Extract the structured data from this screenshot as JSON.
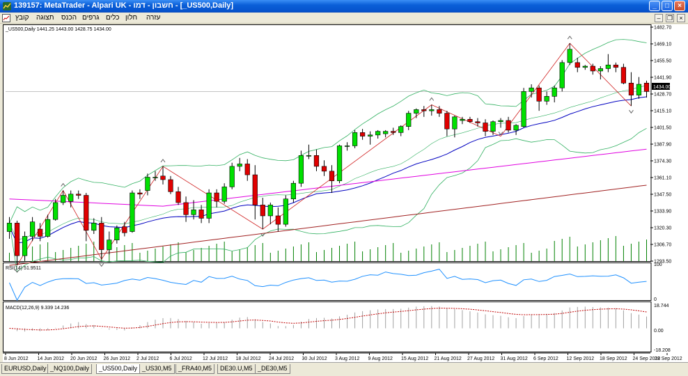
{
  "window": {
    "title": "139157: MetaTrader - Alpari UK - חשבון - דמו - [_US500,Daily]",
    "minimize": "_",
    "maximize": "□",
    "close": "×"
  },
  "menu": {
    "items": [
      "קובץ",
      "תצוגה",
      "הכנס",
      "גרפים",
      "כלים",
      "חלון",
      "עזרה"
    ]
  },
  "chart": {
    "header": "_US500,Daily  1441.25 1443.00 1428.75 1434.00",
    "current_price_label": "1434.00",
    "price_ticks": [
      "1482.70",
      "1469.10",
      "1455.50",
      "1441.90",
      "1428.70",
      "1415.10",
      "1401.50",
      "1387.90",
      "1374.30",
      "1361.10",
      "1347.50",
      "1333.90",
      "1320.30",
      "1306.70",
      "1293.50"
    ],
    "date_ticks": [
      "8 Jun 2012",
      "14 Jun 2012",
      "20 Jun 2012",
      "26 Jun 2012",
      "2 Jul 2012",
      "6 Jul 2012",
      "12 Jul 2012",
      "18 Jul 2012",
      "24 Jul 2012",
      "30 Jul 2012",
      "3 Aug 2012",
      "9 Aug 2012",
      "15 Aug 2012",
      "21 Aug 2012",
      "27 Aug 2012",
      "31 Aug 2012",
      "6 Sep 2012",
      "12 Sep 2012",
      "18 Sep 2012",
      "24 Sep 2012",
      "28 Sep 2012"
    ],
    "rsi_label": "RSI(14) 51.9511",
    "rsi_ticks": [
      "100",
      "0"
    ],
    "macd_label": "MACD(12,26,9) 9.339 14.236",
    "macd_ticks": [
      "18.744",
      "0.00",
      "-18.208"
    ],
    "colors": {
      "bull": "#00e000",
      "bear": "#e00000",
      "ma_blue": "#0000c0",
      "ma_magenta": "#e000e0",
      "ma_brown": "#a02020",
      "bands": "#30b060",
      "zigzag": "#d02020",
      "rsi": "#1e90ff",
      "macd_signal": "#c00000"
    }
  },
  "chart_data": {
    "type": "candlestick",
    "symbol": "_US500",
    "timeframe": "Daily",
    "ylim": [
      1293.5,
      1482.7
    ],
    "ohlc": [
      [
        1318,
        1330,
        1312,
        1325
      ],
      [
        1325,
        1327,
        1290,
        1298
      ],
      [
        1298,
        1318,
        1294,
        1314
      ],
      [
        1314,
        1330,
        1310,
        1326
      ],
      [
        1320,
        1325,
        1310,
        1314
      ],
      [
        1314,
        1332,
        1313,
        1328
      ],
      [
        1328,
        1345,
        1327,
        1342
      ],
      [
        1342,
        1352,
        1340,
        1348
      ],
      [
        1343,
        1352,
        1338,
        1349
      ],
      [
        1349,
        1352,
        1345,
        1348
      ],
      [
        1348,
        1350,
        1310,
        1319
      ],
      [
        1319,
        1329,
        1316,
        1325
      ],
      [
        1325,
        1330,
        1295,
        1303
      ],
      [
        1303,
        1318,
        1299,
        1311
      ],
      [
        1311,
        1323,
        1308,
        1321
      ],
      [
        1322,
        1326,
        1314,
        1317
      ],
      [
        1318,
        1352,
        1317,
        1350
      ],
      [
        1350,
        1353,
        1345,
        1349
      ],
      [
        1352,
        1366,
        1348,
        1363
      ],
      [
        1363,
        1368,
        1360,
        1363
      ],
      [
        1364,
        1372,
        1357,
        1361
      ],
      [
        1361,
        1364,
        1349,
        1351
      ],
      [
        1351,
        1355,
        1340,
        1342
      ],
      [
        1342,
        1347,
        1326,
        1332
      ],
      [
        1332,
        1344,
        1328,
        1336
      ],
      [
        1336,
        1340,
        1325,
        1329
      ],
      [
        1329,
        1353,
        1325,
        1350
      ],
      [
        1350,
        1353,
        1338,
        1343
      ],
      [
        1343,
        1358,
        1341,
        1355
      ],
      [
        1355,
        1375,
        1353,
        1372
      ],
      [
        1372,
        1379,
        1368,
        1374
      ],
      [
        1374,
        1378,
        1360,
        1365
      ],
      [
        1365,
        1373,
        1328,
        1340
      ],
      [
        1340,
        1346,
        1320,
        1331
      ],
      [
        1331,
        1342,
        1324,
        1340
      ],
      [
        1331,
        1338,
        1318,
        1324
      ],
      [
        1324,
        1348,
        1322,
        1345
      ],
      [
        1345,
        1360,
        1342,
        1358
      ],
      [
        1358,
        1385,
        1355,
        1381
      ],
      [
        1381,
        1390,
        1378,
        1381
      ],
      [
        1381,
        1386,
        1368,
        1372
      ],
      [
        1372,
        1377,
        1364,
        1368
      ],
      [
        1368,
        1373,
        1350,
        1360
      ],
      [
        1360,
        1390,
        1358,
        1389
      ],
      [
        1389,
        1392,
        1385,
        1389
      ],
      [
        1389,
        1402,
        1387,
        1400
      ],
      [
        1400,
        1403,
        1394,
        1397
      ],
      [
        1397,
        1401,
        1390,
        1398
      ],
      [
        1398,
        1402,
        1395,
        1401
      ],
      [
        1399,
        1402,
        1396,
        1401
      ],
      [
        1401,
        1404,
        1398,
        1400
      ],
      [
        1400,
        1406,
        1397,
        1405
      ],
      [
        1405,
        1418,
        1402,
        1416
      ],
      [
        1416,
        1420,
        1412,
        1419
      ],
      [
        1419,
        1422,
        1413,
        1418
      ],
      [
        1418,
        1423,
        1414,
        1419
      ],
      [
        1419,
        1422,
        1413,
        1416
      ],
      [
        1416,
        1418,
        1397,
        1403
      ],
      [
        1403,
        1414,
        1396,
        1413
      ],
      [
        1410,
        1413,
        1407,
        1411
      ],
      [
        1411,
        1413,
        1408,
        1409
      ],
      [
        1409,
        1412,
        1405,
        1408
      ],
      [
        1408,
        1411,
        1397,
        1401
      ],
      [
        1401,
        1410,
        1398,
        1409
      ],
      [
        1409,
        1412,
        1404,
        1410
      ],
      [
        1410,
        1413,
        1400,
        1402
      ],
      [
        1402,
        1407,
        1398,
        1406
      ],
      [
        1405,
        1437,
        1404,
        1434
      ],
      [
        1434,
        1440,
        1429,
        1437
      ],
      [
        1437,
        1439,
        1418,
        1426
      ],
      [
        1426,
        1434,
        1423,
        1430
      ],
      [
        1430,
        1439,
        1425,
        1437
      ],
      [
        1437,
        1460,
        1434,
        1458
      ],
      [
        1458,
        1474,
        1456,
        1469
      ],
      [
        1458,
        1462,
        1450,
        1454
      ],
      [
        1454,
        1456,
        1452,
        1455
      ],
      [
        1455,
        1457,
        1448,
        1451
      ],
      [
        1451,
        1455,
        1444,
        1453
      ],
      [
        1453,
        1465,
        1450,
        1456
      ],
      [
        1456,
        1458,
        1450,
        1454
      ],
      [
        1454,
        1457,
        1440,
        1441
      ],
      [
        1441,
        1450,
        1422,
        1431
      ],
      [
        1431,
        1446,
        1428,
        1440
      ],
      [
        1441,
        1443,
        1429,
        1434
      ]
    ],
    "rsi_range": [
      0,
      100
    ],
    "macd_range": [
      -18.208,
      18.744
    ]
  },
  "tabs": [
    {
      "label": "EURUSD,Daily",
      "active": false
    },
    {
      "label": "_NQ100,Daily",
      "active": false
    },
    {
      "label": "_US500,Daily",
      "active": true
    },
    {
      "label": "_US30,M5",
      "active": false
    },
    {
      "label": "_FRA40,M5",
      "active": false
    },
    {
      "label": "DE30.U,M5",
      "active": false
    },
    {
      "label": "_DE30,M5",
      "active": false
    }
  ]
}
